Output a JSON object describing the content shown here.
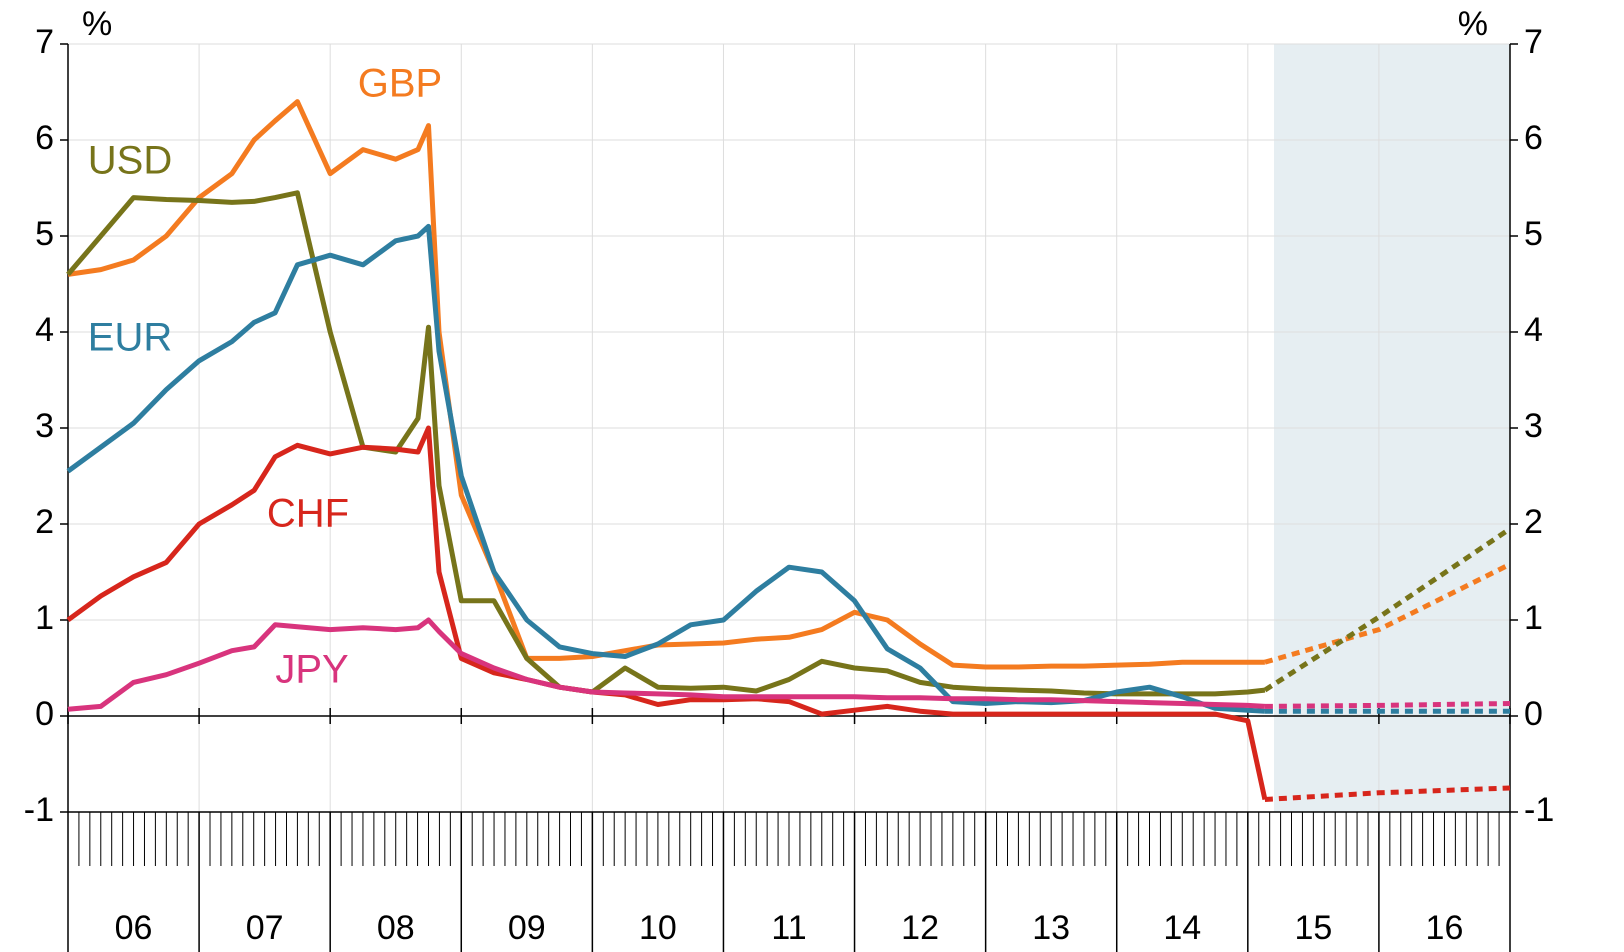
{
  "chart_data": {
    "type": "line",
    "y_unit": "%",
    "x": [
      2006.0,
      2006.25,
      2006.5,
      2006.75,
      2007.0,
      2007.25,
      2007.42,
      2007.58,
      2007.75,
      2008.0,
      2008.25,
      2008.5,
      2008.67,
      2008.75,
      2008.83,
      2009.0,
      2009.25,
      2009.5,
      2009.75,
      2010.0,
      2010.25,
      2010.5,
      2010.75,
      2011.0,
      2011.25,
      2011.5,
      2011.75,
      2012.0,
      2012.25,
      2012.5,
      2012.75,
      2013.0,
      2013.25,
      2013.5,
      2013.75,
      2014.0,
      2014.25,
      2014.5,
      2014.75,
      2015.0,
      2015.13,
      2016.0,
      2017.0
    ],
    "series": [
      {
        "name": "GBP",
        "color": "#f47b20",
        "values": [
          4.6,
          4.65,
          4.75,
          5.0,
          5.4,
          5.65,
          6.0,
          6.2,
          6.4,
          5.65,
          5.9,
          5.8,
          5.9,
          6.15,
          4.0,
          2.3,
          1.5,
          0.6,
          0.6,
          0.62,
          0.68,
          0.74,
          0.75,
          0.76,
          0.8,
          0.82,
          0.9,
          1.08,
          1.0,
          0.75,
          0.53,
          0.51,
          0.51,
          0.52,
          0.52,
          0.53,
          0.54,
          0.56,
          0.56,
          0.56,
          0.56,
          0.9,
          1.58
        ]
      },
      {
        "name": "USD",
        "color": "#77741a",
        "values": [
          4.6,
          5.0,
          5.4,
          5.38,
          5.37,
          5.35,
          5.36,
          5.4,
          5.45,
          4.0,
          2.8,
          2.75,
          3.1,
          4.05,
          2.4,
          1.2,
          1.2,
          0.6,
          0.3,
          0.25,
          0.5,
          0.3,
          0.29,
          0.3,
          0.26,
          0.38,
          0.57,
          0.5,
          0.47,
          0.35,
          0.3,
          0.28,
          0.27,
          0.26,
          0.24,
          0.23,
          0.23,
          0.23,
          0.23,
          0.25,
          0.27,
          1.03,
          1.95
        ]
      },
      {
        "name": "EUR",
        "color": "#2e7ea0",
        "values": [
          2.55,
          2.8,
          3.05,
          3.4,
          3.7,
          3.9,
          4.1,
          4.2,
          4.7,
          4.8,
          4.7,
          4.95,
          5.0,
          5.1,
          3.8,
          2.5,
          1.5,
          1.0,
          0.72,
          0.65,
          0.62,
          0.75,
          0.95,
          1.0,
          1.3,
          1.55,
          1.5,
          1.2,
          0.7,
          0.5,
          0.15,
          0.13,
          0.15,
          0.14,
          0.16,
          0.25,
          0.3,
          0.2,
          0.08,
          0.06,
          0.05,
          0.05,
          0.05
        ]
      },
      {
        "name": "CHF",
        "color": "#d7261c",
        "values": [
          1.0,
          1.25,
          1.45,
          1.6,
          2.0,
          2.2,
          2.35,
          2.7,
          2.82,
          2.73,
          2.8,
          2.78,
          2.75,
          3.0,
          1.5,
          0.6,
          0.45,
          0.38,
          0.3,
          0.25,
          0.22,
          0.12,
          0.17,
          0.17,
          0.18,
          0.15,
          0.02,
          0.06,
          0.1,
          0.05,
          0.02,
          0.02,
          0.02,
          0.02,
          0.02,
          0.02,
          0.02,
          0.02,
          0.02,
          -0.05,
          -0.87,
          -0.8,
          -0.75
        ]
      },
      {
        "name": "JPY",
        "color": "#d8347d",
        "values": [
          0.07,
          0.1,
          0.35,
          0.43,
          0.55,
          0.68,
          0.72,
          0.95,
          0.93,
          0.9,
          0.92,
          0.9,
          0.92,
          1.0,
          0.88,
          0.65,
          0.5,
          0.38,
          0.3,
          0.25,
          0.24,
          0.23,
          0.22,
          0.2,
          0.2,
          0.2,
          0.2,
          0.2,
          0.19,
          0.19,
          0.18,
          0.18,
          0.17,
          0.17,
          0.16,
          0.15,
          0.14,
          0.13,
          0.12,
          0.11,
          0.1,
          0.11,
          0.13
        ]
      }
    ],
    "forecast_from": 2015.13,
    "shaded_from": 2015.2,
    "xlim": [
      2006,
      2017
    ],
    "year_lines": [
      2006,
      2007,
      2008,
      2009,
      2010,
      2011,
      2012,
      2013,
      2014,
      2015,
      2016,
      2017
    ],
    "xticks": [
      {
        "value": 2006.5,
        "label": "06"
      },
      {
        "value": 2007.5,
        "label": "07"
      },
      {
        "value": 2008.5,
        "label": "08"
      },
      {
        "value": 2009.5,
        "label": "09"
      },
      {
        "value": 2010.5,
        "label": "10"
      },
      {
        "value": 2011.5,
        "label": "11"
      },
      {
        "value": 2012.5,
        "label": "12"
      },
      {
        "value": 2013.5,
        "label": "13"
      },
      {
        "value": 2014.5,
        "label": "14"
      },
      {
        "value": 2015.5,
        "label": "15"
      },
      {
        "value": 2016.5,
        "label": "16"
      }
    ],
    "ylim": [
      -1,
      7
    ],
    "yticks": [
      -1,
      0,
      1,
      2,
      3,
      4,
      5,
      6,
      7
    ],
    "grid": true
  }
}
